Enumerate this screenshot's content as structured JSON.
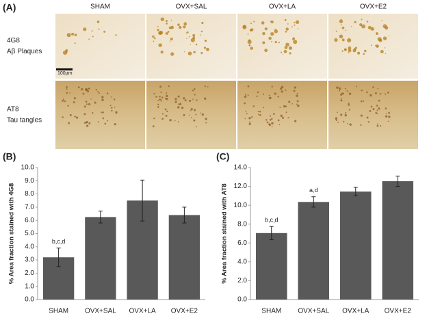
{
  "panel_a": {
    "label": "(A)",
    "columns": [
      "SHAM",
      "OVX+SAL",
      "OVX+LA",
      "OVX+E2"
    ],
    "rows": [
      {
        "line1": "4G8",
        "line2": "Aβ Plaques"
      },
      {
        "line1": "AT8",
        "line2": "Tau tangles"
      }
    ],
    "scale_bar": "100µm"
  },
  "chart_data": [
    {
      "type": "bar",
      "panel_label": "(B)",
      "y_label": "% Area fraction stained with 4G8",
      "categories": [
        "SHAM",
        "OVX+SAL",
        "OVX+LA",
        "OVX+E2"
      ],
      "values": [
        3.2,
        6.25,
        7.5,
        6.4
      ],
      "errors": [
        0.7,
        0.45,
        1.55,
        0.6
      ],
      "annotations": [
        "b,c,d",
        null,
        null,
        null
      ],
      "color": "#595959",
      "ylim": [
        0,
        10
      ],
      "yticks": [
        {
          "value": 0,
          "label": "0.0"
        },
        {
          "value": 1,
          "label": "1.0"
        },
        {
          "value": 2,
          "label": "2.0"
        },
        {
          "value": 3,
          "label": "3.0"
        },
        {
          "value": 4,
          "label": "4.0"
        },
        {
          "value": 5,
          "label": "5.0"
        },
        {
          "value": 6,
          "label": "6.0"
        },
        {
          "value": 7,
          "label": "7.0"
        },
        {
          "value": 8,
          "label": "8.0"
        },
        {
          "value": 9,
          "label": "9.0"
        },
        {
          "value": 10,
          "label": "10.0"
        }
      ]
    },
    {
      "type": "bar",
      "panel_label": "(C)",
      "y_label": "% Area fraction stained with AT8",
      "categories": [
        "SHAM",
        "OVX+SAL",
        "OVX+LA",
        "OVX+E2"
      ],
      "values": [
        7.05,
        10.35,
        11.45,
        12.55
      ],
      "errors": [
        0.7,
        0.55,
        0.45,
        0.55
      ],
      "annotations": [
        "b,c,d",
        "a,d",
        null,
        null
      ],
      "color": "#595959",
      "ylim": [
        0,
        14
      ],
      "yticks": [
        {
          "value": 0,
          "label": "0.0"
        },
        {
          "value": 2,
          "label": "2.0"
        },
        {
          "value": 4,
          "label": "4.0"
        },
        {
          "value": 6,
          "label": "6.0"
        },
        {
          "value": 8,
          "label": "8.0"
        },
        {
          "value": 10,
          "label": "10.0"
        },
        {
          "value": 12,
          "label": "12.0"
        },
        {
          "value": 14,
          "label": "14.0"
        }
      ]
    }
  ]
}
